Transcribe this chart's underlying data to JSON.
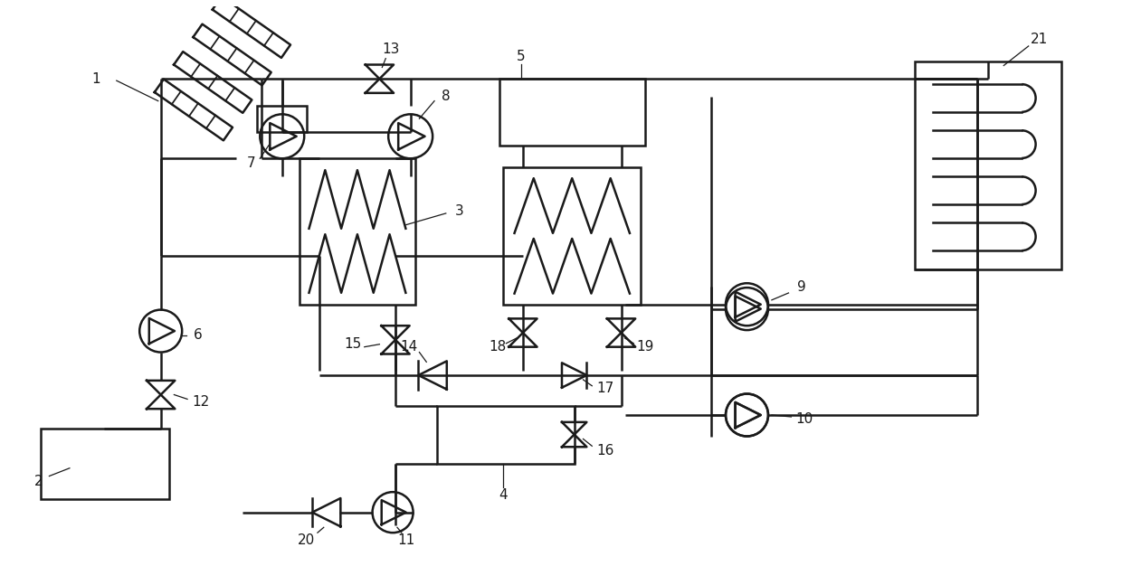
{
  "bg_color": "#ffffff",
  "line_color": "#1a1a1a",
  "line_width": 1.8,
  "fig_width": 12.4,
  "fig_height": 6.47,
  "dpi": 100
}
